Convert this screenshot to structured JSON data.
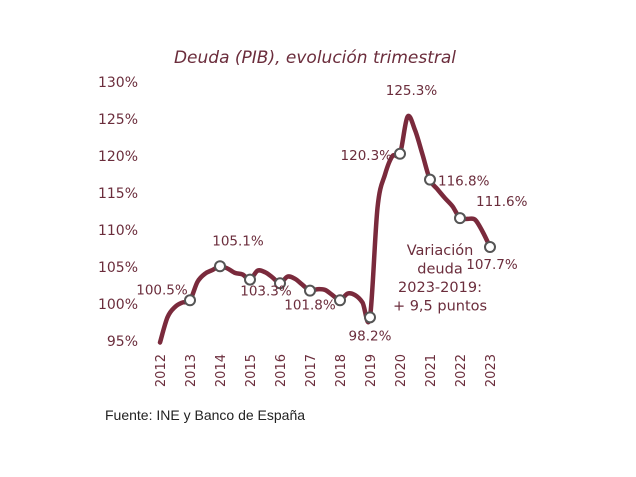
{
  "source": "Fuente: INE y Banco de España",
  "chart_data": {
    "type": "line",
    "title": "Deuda (PIB), evolución trimestral",
    "xlabel": "",
    "ylabel": "",
    "ylim": [
      95,
      130
    ],
    "xlim": [
      2012,
      2023
    ],
    "yticks": [
      95,
      100,
      105,
      110,
      115,
      120,
      125,
      130
    ],
    "ytick_labels": [
      "95%",
      "100%",
      "105%",
      "110%",
      "115%",
      "120%",
      "125%",
      "130%"
    ],
    "xticks": [
      "2012",
      "2013",
      "2014",
      "2015",
      "2016",
      "2017",
      "2018",
      "2019",
      "2020",
      "2021",
      "2022",
      "2023"
    ],
    "grid": false,
    "line_color": "#7a2a3c",
    "x": [
      2012.0,
      2012.25,
      2012.5,
      2012.75,
      2013.0,
      2013.25,
      2013.5,
      2013.75,
      2014.0,
      2014.25,
      2014.5,
      2014.75,
      2015.0,
      2015.25,
      2015.5,
      2015.75,
      2016.0,
      2016.25,
      2016.5,
      2016.75,
      2017.0,
      2017.25,
      2017.5,
      2017.75,
      2018.0,
      2018.25,
      2018.5,
      2018.75,
      2019.0,
      2019.25,
      2019.5,
      2019.75,
      2020.0,
      2020.25,
      2020.5,
      2020.75,
      2021.0,
      2021.25,
      2021.5,
      2021.75,
      2022.0,
      2022.25,
      2022.5,
      2022.75,
      2023.0
    ],
    "values": [
      94.8,
      98.2,
      99.6,
      100.2,
      100.5,
      103.0,
      104.1,
      104.6,
      105.1,
      104.8,
      104.2,
      104.0,
      103.3,
      104.5,
      104.3,
      103.6,
      102.8,
      103.7,
      103.4,
      102.6,
      101.8,
      102.0,
      101.9,
      101.2,
      100.5,
      101.4,
      101.2,
      100.2,
      98.2,
      113.0,
      117.5,
      120.0,
      120.3,
      125.3,
      123.5,
      120.2,
      116.8,
      115.5,
      114.3,
      113.2,
      111.6,
      111.5,
      111.4,
      109.8,
      107.7
    ],
    "markers": [
      {
        "x": 2013.0,
        "y": 100.5,
        "label": "100.5%"
      },
      {
        "x": 2014.0,
        "y": 105.1,
        "label": "105.1%"
      },
      {
        "x": 2015.0,
        "y": 103.3,
        "label": "103.3%"
      },
      {
        "x": 2016.0,
        "y": 102.8,
        "label": ""
      },
      {
        "x": 2017.0,
        "y": 101.8,
        "label": "101.8%"
      },
      {
        "x": 2018.0,
        "y": 100.5,
        "label": ""
      },
      {
        "x": 2019.0,
        "y": 98.2,
        "label": "98.2%"
      },
      {
        "x": 2020.0,
        "y": 120.3,
        "label": "120.3%"
      },
      {
        "x": 2021.0,
        "y": 116.8,
        "label": "116.8%"
      },
      {
        "x": 2022.0,
        "y": 111.6,
        "label": "111.6%"
      },
      {
        "x": 2023.0,
        "y": 107.7,
        "label": "107.7%"
      }
    ],
    "peak_label": {
      "x": 2020.25,
      "y": 125.3,
      "label": "125.3%"
    },
    "annotation": [
      "Variación",
      "deuda",
      "2023-2019:",
      "+ 9,5 puntos"
    ]
  }
}
